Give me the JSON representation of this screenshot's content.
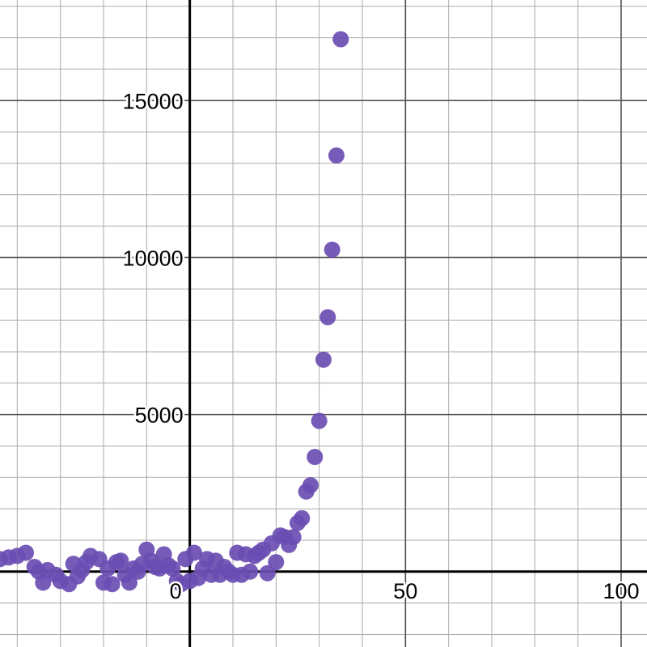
{
  "chart_data": {
    "type": "scatter",
    "title": "",
    "xlabel": "",
    "ylabel": "",
    "xlim": [
      -44,
      106
    ],
    "ylim": [
      -2400,
      18200
    ],
    "grid": true,
    "x_major_ticks": [
      0,
      50,
      100
    ],
    "y_major_ticks": [
      5000,
      10000,
      15000
    ],
    "x_tick_labels": [
      "0",
      "50",
      "100"
    ],
    "y_tick_labels": [
      "5000",
      "10000",
      "15000"
    ],
    "colors": {
      "point": "#6a4db2",
      "axis": "#000000",
      "major_grid": "#555555",
      "minor_grid": "#aaaaaa",
      "background": "#ffffff"
    },
    "series": [
      {
        "points": [
          [
            -44,
            400
          ],
          [
            -42,
            450
          ],
          [
            -40,
            500
          ],
          [
            -38,
            600
          ],
          [
            -36,
            150
          ],
          [
            -35,
            0
          ],
          [
            -34,
            -350
          ],
          [
            -33,
            50
          ],
          [
            -31,
            -100
          ],
          [
            -30,
            -300
          ],
          [
            -28,
            -400
          ],
          [
            -27,
            250
          ],
          [
            -26,
            -150
          ],
          [
            -25,
            50
          ],
          [
            -24,
            300
          ],
          [
            -23,
            500
          ],
          [
            -21,
            400
          ],
          [
            -20,
            -350
          ],
          [
            -19,
            100
          ],
          [
            -18,
            -400
          ],
          [
            -17,
            300
          ],
          [
            -16,
            350
          ],
          [
            -15,
            -100
          ],
          [
            -14,
            -350
          ],
          [
            -13,
            100
          ],
          [
            -12,
            0
          ],
          [
            -11,
            250
          ],
          [
            -10,
            700
          ],
          [
            -9,
            350
          ],
          [
            -8,
            150
          ],
          [
            -7,
            100
          ],
          [
            -6,
            550
          ],
          [
            -5,
            200
          ],
          [
            -4,
            100
          ],
          [
            -3,
            -300
          ],
          [
            -2,
            -400
          ],
          [
            -1,
            400
          ],
          [
            0,
            -300
          ],
          [
            1,
            600
          ],
          [
            2,
            -200
          ],
          [
            3,
            100
          ],
          [
            4,
            400
          ],
          [
            5,
            -100
          ],
          [
            6,
            350
          ],
          [
            7,
            -100
          ],
          [
            8,
            150
          ],
          [
            9,
            0
          ],
          [
            10,
            -100
          ],
          [
            11,
            600
          ],
          [
            12,
            -100
          ],
          [
            13,
            550
          ],
          [
            14,
            0
          ],
          [
            15,
            500
          ],
          [
            16,
            600
          ],
          [
            17,
            700
          ],
          [
            18,
            -50
          ],
          [
            19,
            900
          ],
          [
            20,
            300
          ],
          [
            21,
            1150
          ],
          [
            22,
            1100
          ],
          [
            23,
            850
          ],
          [
            24,
            1100
          ],
          [
            25,
            1550
          ],
          [
            26,
            1700
          ],
          [
            27,
            2550
          ],
          [
            28,
            2750
          ],
          [
            29,
            3650
          ],
          [
            30,
            4800
          ],
          [
            31,
            6750
          ],
          [
            32,
            8100
          ],
          [
            33,
            10250
          ],
          [
            34,
            13250
          ],
          [
            35,
            16950
          ]
        ]
      }
    ]
  }
}
